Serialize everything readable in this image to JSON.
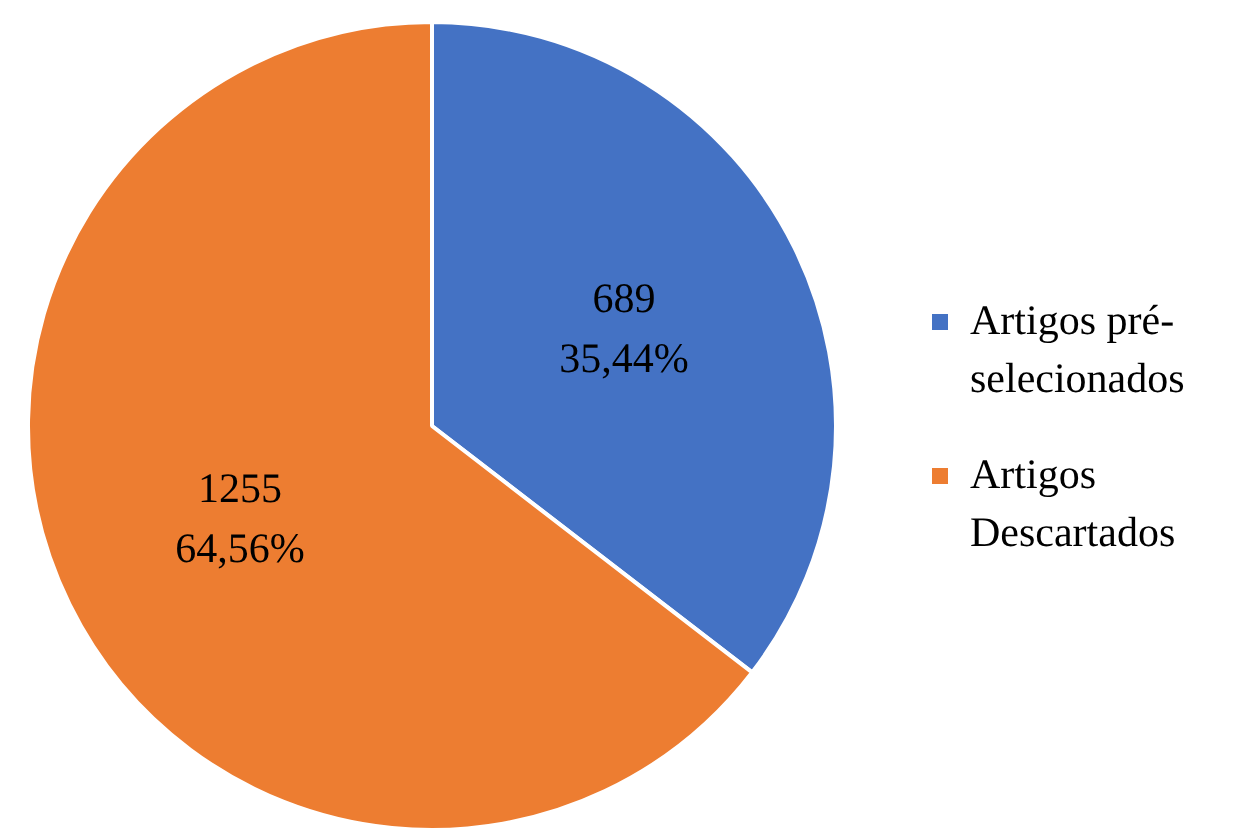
{
  "chart_data": {
    "type": "pie",
    "categories": [
      "Artigos pré-selecionados",
      "Artigos Descartados"
    ],
    "values": [
      689,
      1255
    ],
    "colors": [
      "#4472c4",
      "#ed7d31"
    ],
    "value_labels": [
      "689\n35,44%",
      "1255\n64,56%"
    ],
    "legend": "right"
  }
}
